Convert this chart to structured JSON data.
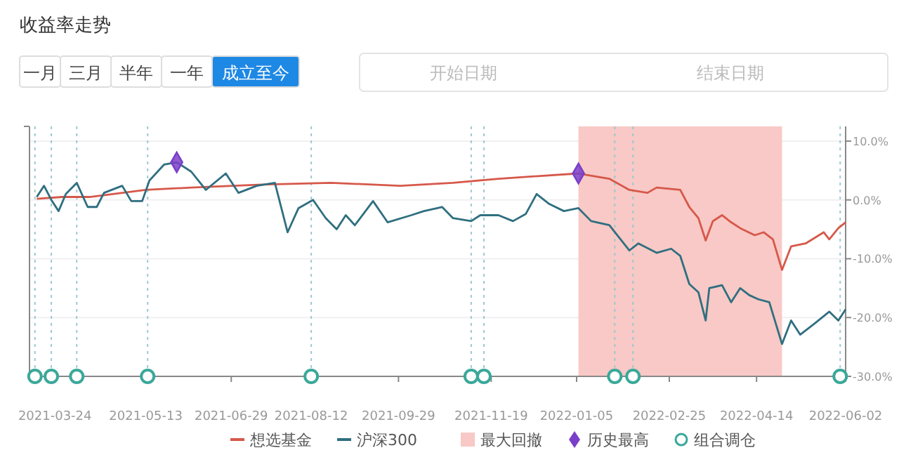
{
  "chart_data": {
    "type": "line",
    "title": "收益率走势",
    "annotations": [
      "一月",
      "三月",
      "半年",
      "一年",
      "成立至今",
      "开始日期",
      "结束日期"
    ],
    "xlim": [
      "2021-03-10",
      "2022-06-02"
    ],
    "xticks": [
      "2021-03-24",
      "2021-05-13",
      "2021-06-29",
      "2021-08-12",
      "2021-09-29",
      "2021-11-19",
      "2022-01-05",
      "2022-02-25",
      "2022-04-14",
      "2022-06-02"
    ],
    "ylim": [
      -30,
      12.5
    ],
    "yticks": [
      {
        "value": 10,
        "label": "10.0%"
      },
      {
        "value": 0,
        "label": "0.0%"
      },
      {
        "value": -10,
        "label": "-10.0%"
      },
      {
        "value": -20,
        "label": "-20.0%"
      },
      {
        "value": -30,
        "label": "-30.0%"
      }
    ],
    "grid": "y",
    "legend": "bottom",
    "line_style": "solid",
    "bands": [
      {
        "axis": "x",
        "from": "2022-01-06",
        "to": "2022-04-28",
        "label": "最大回撤",
        "color": "#f8c9c6"
      }
    ],
    "ref_lines": [
      {
        "axis": "x",
        "value": "2021-03-13",
        "color": "#9cc9cf",
        "line_style": "dotted"
      },
      {
        "axis": "x",
        "value": "2021-03-22",
        "color": "#9cc9cf",
        "line_style": "dotted"
      },
      {
        "axis": "x",
        "value": "2021-04-05",
        "color": "#9cc9cf",
        "line_style": "dotted"
      },
      {
        "axis": "x",
        "value": "2021-05-14",
        "color": "#9cc9cf",
        "line_style": "dotted"
      },
      {
        "axis": "x",
        "value": "2021-08-12",
        "color": "#9cc9cf",
        "line_style": "dotted"
      },
      {
        "axis": "x",
        "value": "2021-11-08",
        "color": "#9cc9cf",
        "line_style": "dotted"
      },
      {
        "axis": "x",
        "value": "2021-11-15",
        "color": "#9cc9cf",
        "line_style": "dotted"
      },
      {
        "axis": "x",
        "value": "2022-01-26",
        "color": "#9cc9cf",
        "line_style": "dotted"
      },
      {
        "axis": "x",
        "value": "2022-02-05",
        "color": "#9cc9cf",
        "line_style": "dotted"
      },
      {
        "axis": "x",
        "value": "2022-05-30",
        "color": "#9cc9cf",
        "line_style": "dotted"
      }
    ],
    "series": [
      {
        "name": "想选基金",
        "color": "#d6584a",
        "type": "line",
        "marker": "none",
        "x": [
          "2021-03-14",
          "2021-03-28",
          "2021-04-12",
          "2021-05-13",
          "2021-06-07",
          "2021-07-16",
          "2021-08-23",
          "2021-09-30",
          "2021-10-29",
          "2021-11-23",
          "2022-01-06",
          "2022-01-23",
          "2022-02-03",
          "2022-02-13",
          "2022-02-18",
          "2022-03-03",
          "2022-03-08",
          "2022-03-13",
          "2022-03-17",
          "2022-03-21",
          "2022-03-26",
          "2022-03-31",
          "2022-04-05",
          "2022-04-13",
          "2022-04-18",
          "2022-04-23",
          "2022-04-28",
          "2022-05-03",
          "2022-05-11",
          "2022-05-21",
          "2022-05-24",
          "2022-05-29",
          "2022-06-02"
        ],
        "values": [
          0.2,
          0.5,
          0.5,
          1.7,
          2.1,
          2.6,
          2.9,
          2.4,
          2.9,
          3.6,
          4.5,
          3.6,
          1.7,
          1.2,
          2.1,
          1.7,
          -1.2,
          -3.1,
          -6.9,
          -3.6,
          -2.6,
          -3.8,
          -4.8,
          -6.0,
          -5.5,
          -6.7,
          -11.9,
          -7.9,
          -7.4,
          -5.5,
          -6.7,
          -4.8,
          -3.8
        ]
      },
      {
        "name": "沪深300",
        "color": "#2f6f80",
        "type": "line",
        "marker": "none",
        "x": [
          "2021-03-14",
          "2021-03-18",
          "2021-03-22",
          "2021-03-26",
          "2021-03-30",
          "2021-04-05",
          "2021-04-11",
          "2021-04-16",
          "2021-04-20",
          "2021-04-30",
          "2021-05-05",
          "2021-05-11",
          "2021-05-15",
          "2021-05-23",
          "2021-05-30",
          "2021-06-07",
          "2021-06-15",
          "2021-06-26",
          "2021-07-03",
          "2021-07-13",
          "2021-07-23",
          "2021-07-30",
          "2021-08-05",
          "2021-08-13",
          "2021-08-20",
          "2021-08-26",
          "2021-08-31",
          "2021-09-05",
          "2021-09-15",
          "2021-09-23",
          "2021-10-06",
          "2021-10-13",
          "2021-10-23",
          "2021-10-29",
          "2021-11-08",
          "2021-11-13",
          "2021-11-23",
          "2021-12-01",
          "2021-12-08",
          "2021-12-14",
          "2021-12-21",
          "2021-12-29",
          "2022-01-06",
          "2022-01-13",
          "2022-01-23",
          "2022-02-03",
          "2022-02-08",
          "2022-02-18",
          "2022-02-26",
          "2022-03-03",
          "2022-03-08",
          "2022-03-13",
          "2022-03-17",
          "2022-03-19",
          "2022-03-26",
          "2022-03-31",
          "2022-04-05",
          "2022-04-10",
          "2022-04-15",
          "2022-04-21",
          "2022-04-28",
          "2022-05-03",
          "2022-05-08",
          "2022-05-16",
          "2022-05-24",
          "2022-05-29",
          "2022-06-02"
        ],
        "values": [
          0.5,
          2.4,
          0,
          -1.9,
          1.0,
          2.9,
          -1.2,
          -1.2,
          1.2,
          2.4,
          -0.2,
          -0.2,
          3.3,
          6.0,
          6.4,
          4.8,
          1.7,
          4.5,
          1.2,
          2.4,
          2.9,
          -5.5,
          -1.4,
          0,
          -3.1,
          -5.0,
          -2.6,
          -4.3,
          -0.2,
          -3.8,
          -2.6,
          -1.9,
          -1.2,
          -3.1,
          -3.6,
          -2.6,
          -2.6,
          -3.6,
          -2.4,
          1.0,
          -0.7,
          -1.9,
          -1.4,
          -3.6,
          -4.3,
          -8.6,
          -7.4,
          -9.0,
          -8.3,
          -9.5,
          -14.3,
          -15.7,
          -20.5,
          -15.0,
          -14.5,
          -17.4,
          -15.0,
          -16.2,
          -16.9,
          -17.4,
          -24.5,
          -20.5,
          -22.9,
          -21.0,
          -19.0,
          -20.5,
          -18.6
        ]
      },
      {
        "name": "历史最高",
        "color": "#7a3fc8",
        "type": "scatter",
        "marker": "diamond",
        "x": [
          "2021-05-30",
          "2022-01-06"
        ],
        "values": [
          6.4,
          4.5
        ]
      },
      {
        "name": "组合调仓",
        "color": "#3aa89a",
        "type": "scatter",
        "marker": "circle",
        "x": [
          "2021-03-13",
          "2021-03-22",
          "2021-04-05",
          "2021-05-14",
          "2021-08-12",
          "2021-11-08",
          "2021-11-15",
          "2022-01-26",
          "2022-02-05",
          "2022-05-30"
        ],
        "values": [
          -30,
          -30,
          -30,
          -30,
          -30,
          -30,
          -30,
          -30,
          -30,
          -30
        ]
      }
    ]
  }
}
